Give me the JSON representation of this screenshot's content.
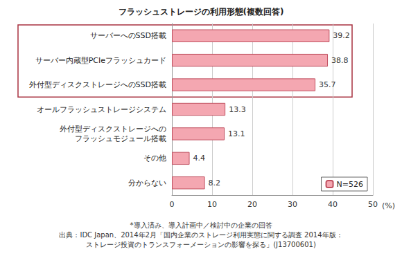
{
  "chart_data": {
    "type": "bar",
    "orientation": "horizontal",
    "title": "フラッシュストレージの利用形態(複数回答)",
    "categories": [
      "サーバーへのSSD搭載",
      "サーバー内蔵型PCIeフラッシュカード",
      "外付型ディスクストレージへのSSD搭載",
      "オールフラッシュストレージシステム",
      "外付型ディスクストレージへの\nフラッシュモジュール搭載",
      "その他",
      "分からない"
    ],
    "series": [
      {
        "name": "N=526",
        "color": "#f4a7b1",
        "values": [
          39.2,
          38.8,
          35.7,
          13.3,
          13.1,
          4.4,
          8.2
        ]
      }
    ],
    "xlabel": "(%)",
    "xlim": [
      0,
      50
    ],
    "xticks": [
      0,
      10,
      20,
      30,
      40,
      50
    ],
    "grid": true,
    "data_labels": true,
    "legend": "lower right",
    "annotations": [
      "*導入済み、導入計画中／検討中の企業の回答",
      "出典：IDC Japan、2014年2月「国内企業のストレージ利用実態に関する調査 2014年版：",
      "ストレージ投資のトランスフォーメーションの影響を探る」(J13700601)"
    ]
  }
}
